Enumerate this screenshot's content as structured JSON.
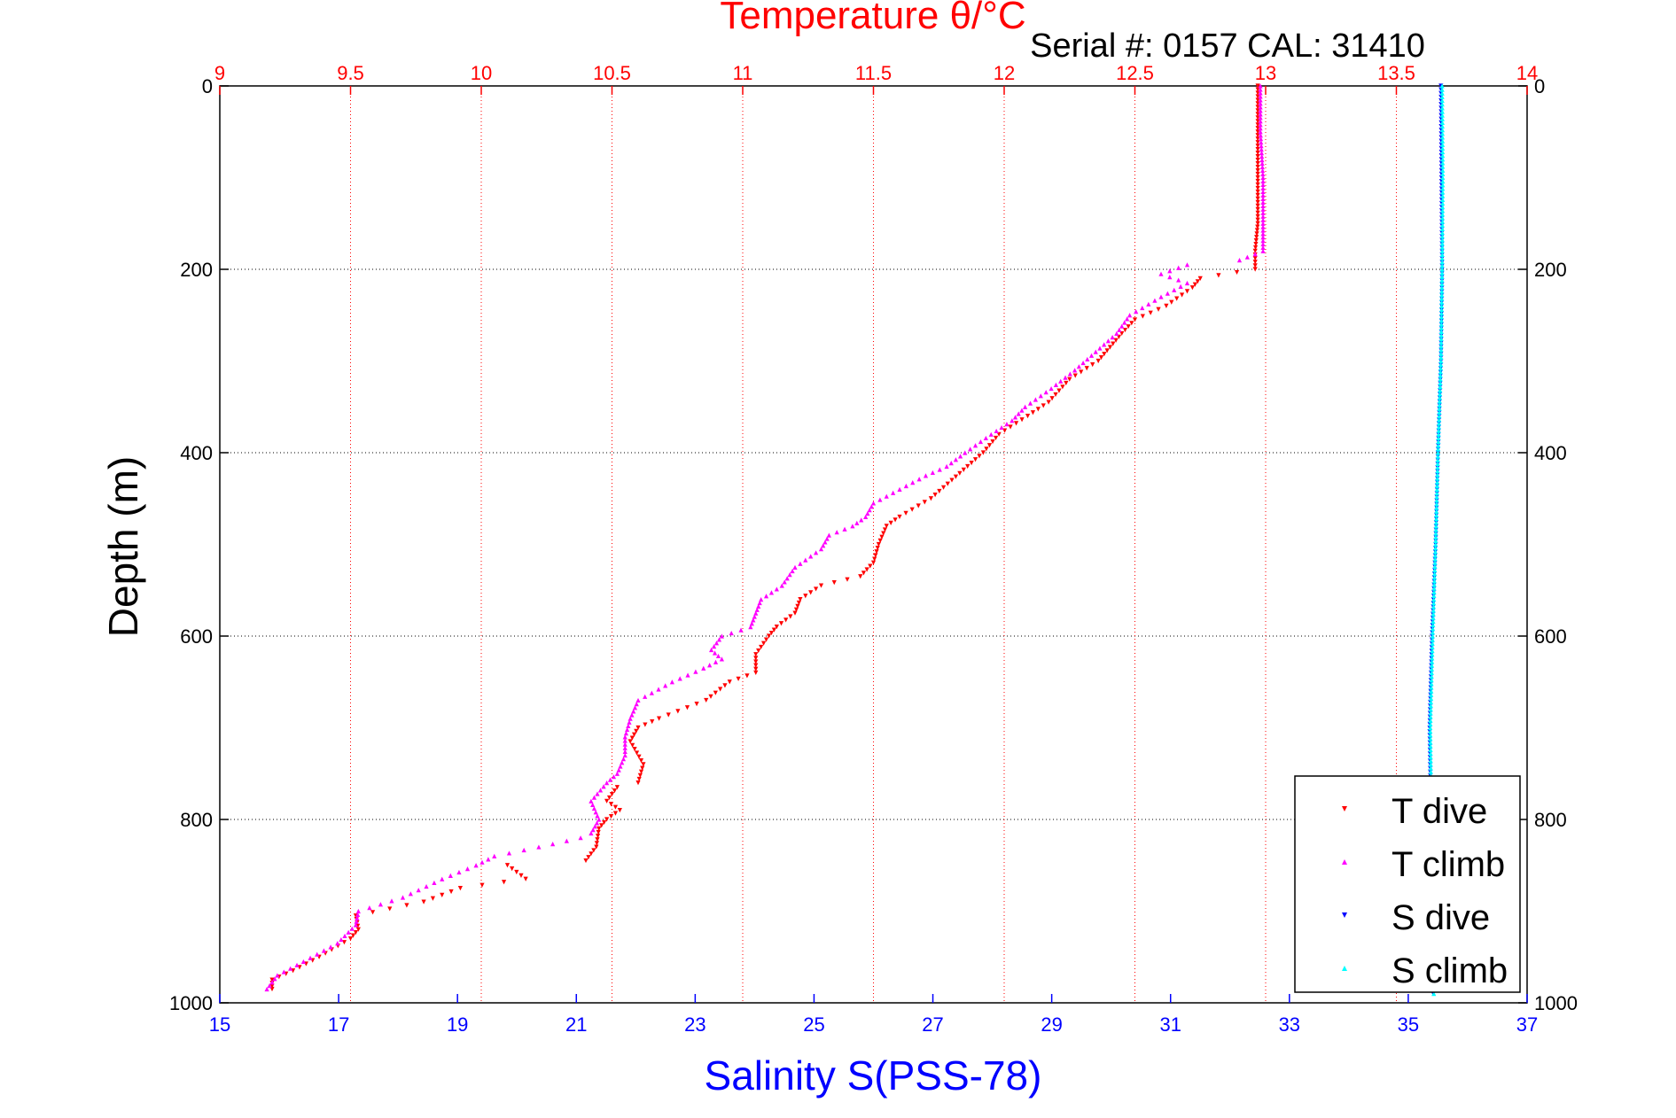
{
  "chart_data": {
    "type": "scatter",
    "title": "Temperature θ/°C",
    "subtitle": "Serial #: 0157  CAL: 31410",
    "ylabel": "Depth (m)",
    "xlabel": "Salinity S(PSS-78)",
    "y_axis": {
      "label": "Depth (m)",
      "ylim": [
        0,
        1000
      ],
      "reversed": true,
      "ticks": [
        "0",
        "200",
        "400",
        "600",
        "800",
        "1000"
      ],
      "tick_values": [
        0,
        200,
        400,
        600,
        800,
        1000
      ],
      "grid": true
    },
    "x_axis_top": {
      "label": "Temperature θ/°C",
      "xlim": [
        9,
        14
      ],
      "ticks": [
        "9",
        "9.5",
        "10",
        "10.5",
        "11",
        "11.5",
        "12",
        "12.5",
        "13",
        "13.5",
        "14"
      ],
      "tick_values": [
        9,
        9.5,
        10,
        10.5,
        11,
        11.5,
        12,
        12.5,
        13,
        13.5,
        14
      ],
      "grid": true,
      "color": "#ff0000"
    },
    "x_axis_bottom": {
      "label": "Salinity S(PSS-78)",
      "xlim": [
        15,
        37
      ],
      "ticks": [
        "15",
        "17",
        "19",
        "21",
        "23",
        "25",
        "27",
        "29",
        "31",
        "33",
        "35",
        "37"
      ],
      "tick_values": [
        15,
        17,
        19,
        21,
        23,
        25,
        27,
        29,
        31,
        33,
        35,
        37
      ],
      "color": "#0000ff"
    },
    "legend": {
      "placement": "bottom-right"
    },
    "series": [
      {
        "name": "T dive",
        "axis": "temperature",
        "marker": "triangle-down",
        "color": "#ff0000",
        "points": [
          [
            12.97,
            0
          ],
          [
            12.97,
            50
          ],
          [
            12.97,
            100
          ],
          [
            12.97,
            150
          ],
          [
            12.96,
            180
          ],
          [
            12.96,
            200
          ],
          [
            12.75,
            210
          ],
          [
            12.72,
            220
          ],
          [
            12.62,
            240
          ],
          [
            12.5,
            255
          ],
          [
            12.45,
            270
          ],
          [
            12.36,
            300
          ],
          [
            12.25,
            320
          ],
          [
            12.17,
            345
          ],
          [
            12.09,
            360
          ],
          [
            11.98,
            380
          ],
          [
            11.92,
            400
          ],
          [
            11.8,
            430
          ],
          [
            11.72,
            450
          ],
          [
            11.6,
            470
          ],
          [
            11.55,
            480
          ],
          [
            11.52,
            500
          ],
          [
            11.5,
            520
          ],
          [
            11.45,
            535
          ],
          [
            11.3,
            545
          ],
          [
            11.22,
            560
          ],
          [
            11.2,
            575
          ],
          [
            11.13,
            590
          ],
          [
            11.1,
            600
          ],
          [
            11.05,
            620
          ],
          [
            11.05,
            640
          ],
          [
            10.95,
            650
          ],
          [
            10.86,
            670
          ],
          [
            10.68,
            690
          ],
          [
            10.6,
            700
          ],
          [
            10.57,
            715
          ],
          [
            10.62,
            740
          ],
          [
            10.6,
            760
          ],
          [
            10.52,
            765
          ],
          [
            10.48,
            780
          ],
          [
            10.53,
            790
          ],
          [
            10.48,
            800
          ],
          [
            10.45,
            810
          ],
          [
            10.44,
            830
          ],
          [
            10.4,
            845
          ],
          [
            10.1,
            850
          ],
          [
            10.17,
            865
          ],
          [
            9.92,
            875
          ],
          [
            9.78,
            890
          ],
          [
            9.52,
            905
          ],
          [
            9.53,
            920
          ],
          [
            9.5,
            930
          ],
          [
            9.38,
            950
          ],
          [
            9.28,
            965
          ],
          [
            9.2,
            975
          ],
          [
            9.2,
            985
          ]
        ]
      },
      {
        "name": "T climb",
        "axis": "temperature",
        "marker": "triangle-up",
        "color": "#ff00ff",
        "points": [
          [
            12.98,
            0
          ],
          [
            12.98,
            50
          ],
          [
            12.99,
            100
          ],
          [
            12.99,
            150
          ],
          [
            12.99,
            180
          ],
          [
            12.9,
            190
          ],
          [
            12.7,
            195
          ],
          [
            12.6,
            205
          ],
          [
            12.7,
            215
          ],
          [
            12.6,
            230
          ],
          [
            12.48,
            250
          ],
          [
            12.43,
            270
          ],
          [
            12.35,
            290
          ],
          [
            12.27,
            310
          ],
          [
            12.18,
            330
          ],
          [
            12.08,
            350
          ],
          [
            12.03,
            365
          ],
          [
            11.95,
            380
          ],
          [
            11.85,
            400
          ],
          [
            11.78,
            415
          ],
          [
            11.7,
            425
          ],
          [
            11.6,
            440
          ],
          [
            11.5,
            455
          ],
          [
            11.47,
            470
          ],
          [
            11.42,
            480
          ],
          [
            11.33,
            490
          ],
          [
            11.3,
            505
          ],
          [
            11.2,
            525
          ],
          [
            11.15,
            545
          ],
          [
            11.07,
            560
          ],
          [
            11.05,
            575
          ],
          [
            11.03,
            590
          ],
          [
            10.92,
            600
          ],
          [
            10.88,
            615
          ],
          [
            10.92,
            625
          ],
          [
            10.85,
            635
          ],
          [
            10.73,
            650
          ],
          [
            10.6,
            670
          ],
          [
            10.57,
            690
          ],
          [
            10.55,
            710
          ],
          [
            10.55,
            730
          ],
          [
            10.52,
            750
          ],
          [
            10.48,
            760
          ],
          [
            10.42,
            780
          ],
          [
            10.45,
            800
          ],
          [
            10.42,
            815
          ],
          [
            10.38,
            820
          ],
          [
            10.22,
            830
          ],
          [
            10.05,
            840
          ],
          [
            9.98,
            850
          ],
          [
            9.85,
            865
          ],
          [
            9.7,
            885
          ],
          [
            9.53,
            900
          ],
          [
            9.52,
            915
          ],
          [
            9.45,
            935
          ],
          [
            9.32,
            955
          ],
          [
            9.22,
            970
          ],
          [
            9.18,
            985
          ]
        ]
      },
      {
        "name": "S dive",
        "axis": "salinity",
        "marker": "triangle-down",
        "color": "#0000ff",
        "points": [
          [
            35.55,
            0
          ],
          [
            35.56,
            100
          ],
          [
            35.57,
            200
          ],
          [
            35.55,
            300
          ],
          [
            35.5,
            400
          ],
          [
            35.46,
            500
          ],
          [
            35.4,
            600
          ],
          [
            35.36,
            700
          ],
          [
            35.38,
            800
          ],
          [
            35.4,
            900
          ],
          [
            35.42,
            990
          ]
        ]
      },
      {
        "name": "S climb",
        "axis": "salinity",
        "marker": "triangle-up",
        "color": "#00ffff",
        "points": [
          [
            35.57,
            0
          ],
          [
            35.58,
            100
          ],
          [
            35.57,
            200
          ],
          [
            35.55,
            300
          ],
          [
            35.5,
            400
          ],
          [
            35.46,
            500
          ],
          [
            35.41,
            600
          ],
          [
            35.37,
            700
          ],
          [
            35.39,
            800
          ],
          [
            35.41,
            900
          ],
          [
            35.43,
            990
          ]
        ]
      }
    ]
  }
}
